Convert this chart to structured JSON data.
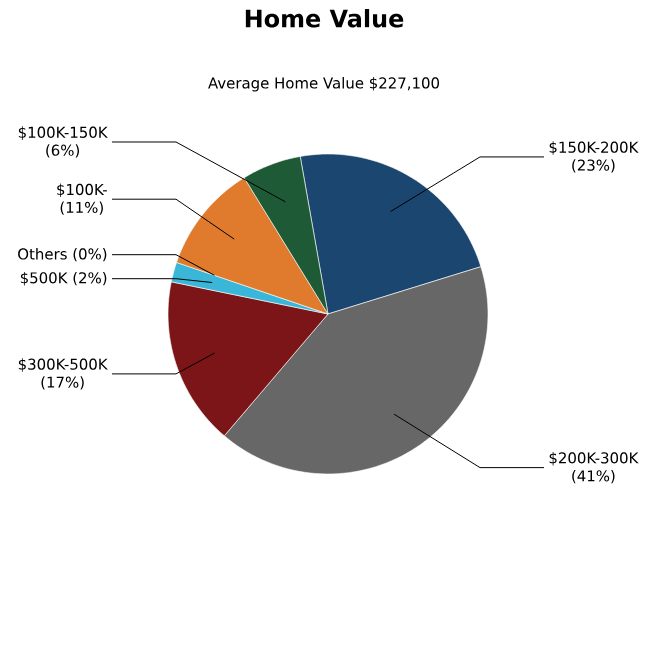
{
  "chart_data": {
    "type": "pie",
    "title": "Home Value",
    "subtitle": "Average Home Value  $227,100",
    "categories": [
      "$150K-200K",
      "$200K-300K",
      "$300K-500K",
      "$500K",
      "Others",
      "$100K-",
      "$100K-150K"
    ],
    "values": [
      23,
      41,
      17,
      2,
      0,
      11,
      6
    ],
    "value_labels": [
      "(23%)",
      "(41%)",
      "(17%)",
      "(2%)",
      "(0%)",
      "(11%)",
      "(6%)"
    ],
    "colors": [
      "#1b4670",
      "#676767",
      "#7c1517",
      "#3ab7d8",
      "#9ab0c0",
      "#e07a2c",
      "#1e5a35"
    ]
  }
}
